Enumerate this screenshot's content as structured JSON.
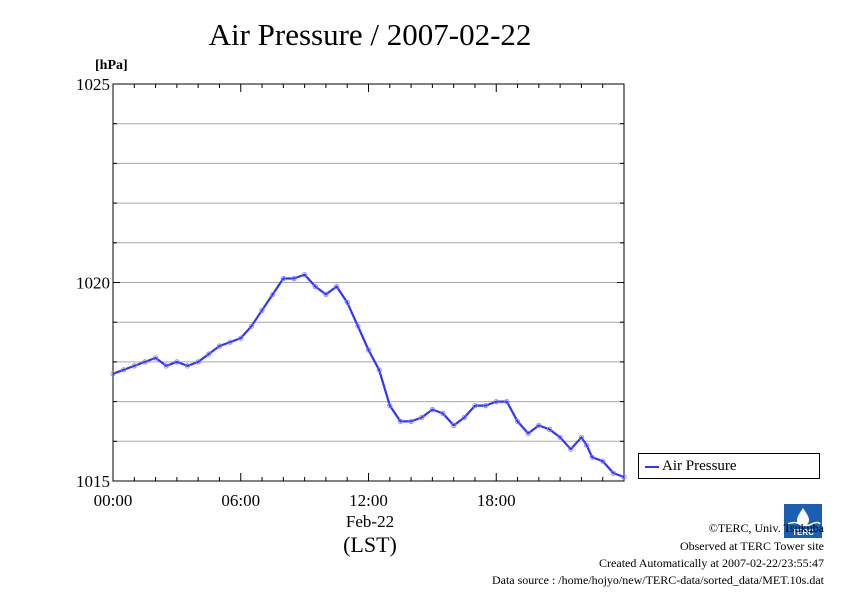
{
  "chart_data": {
    "type": "line",
    "title": "Air Pressure / 2007-02-22",
    "ylabel": "[hPa]",
    "date_label": "Feb-22",
    "tz_label": "(LST)",
    "xlim": [
      0,
      24
    ],
    "ylim": [
      1015,
      1025
    ],
    "y_ticks": [
      "1015",
      "1020",
      "1025"
    ],
    "x_ticks": [
      {
        "value": 0,
        "label": "00:00"
      },
      {
        "value": 6,
        "label": "06:00"
      },
      {
        "value": 12,
        "label": "12:00"
      },
      {
        "value": 18,
        "label": "18:00"
      }
    ],
    "grid": true,
    "legend_position": "right",
    "series": [
      {
        "name": "Air Pressure",
        "color": "#3333ff",
        "x": [
          0.0,
          0.5,
          1.0,
          1.5,
          2.0,
          2.5,
          3.0,
          3.5,
          4.0,
          4.5,
          5.0,
          5.5,
          6.0,
          6.5,
          7.0,
          7.5,
          8.0,
          8.5,
          9.0,
          9.5,
          10.0,
          10.5,
          11.0,
          11.5,
          12.0,
          12.5,
          13.0,
          13.5,
          14.0,
          14.5,
          15.0,
          15.5,
          16.0,
          16.5,
          17.0,
          17.5,
          18.0,
          18.5,
          19.0,
          19.5,
          20.0,
          20.5,
          21.0,
          21.5,
          22.0,
          22.25,
          22.5,
          23.0,
          23.5,
          24.0
        ],
        "y": [
          1017.7,
          1017.8,
          1017.9,
          1018.0,
          1018.1,
          1017.9,
          1018.0,
          1017.9,
          1018.0,
          1018.2,
          1018.4,
          1018.5,
          1018.6,
          1018.9,
          1019.3,
          1019.7,
          1020.1,
          1020.1,
          1020.2,
          1019.9,
          1019.7,
          1019.9,
          1019.5,
          1018.9,
          1018.3,
          1017.8,
          1016.9,
          1016.5,
          1016.5,
          1016.6,
          1016.8,
          1016.7,
          1016.4,
          1016.6,
          1016.9,
          1016.9,
          1017.0,
          1017.0,
          1016.5,
          1016.2,
          1016.4,
          1016.3,
          1016.1,
          1015.8,
          1016.1,
          1015.9,
          1015.6,
          1015.5,
          1015.2,
          1015.1
        ]
      }
    ]
  },
  "legend": {
    "label": "Air Pressure"
  },
  "credits": {
    "line1": "©TERC, Univ. Tsukuba",
    "line2": "Observed at TERC Tower site",
    "line3": "Created Automatically at 2007-02-22/23:55:47",
    "line4": "Data source : /home/hojyo/new/TERC-data/sorted_data/MET.10s.dat"
  },
  "logo": {
    "text": "TERC",
    "color": "#1a5fb4"
  }
}
